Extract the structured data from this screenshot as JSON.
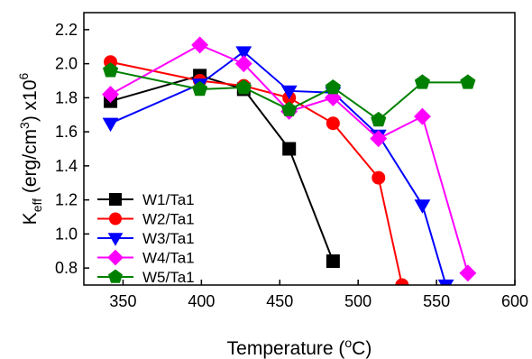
{
  "chart_data": {
    "type": "line",
    "title": "",
    "xlabel": "Temperature (°C)",
    "xlabel_parts": {
      "main": "Temperature (",
      "sup": "o",
      "end": "C)"
    },
    "ylabel": "K_eff (erg/cm^3) x10^6",
    "ylabel_parts": {
      "k": "K",
      "sub": "eff",
      "mid": " (erg/cm",
      "sup3": "3",
      "mid2": ") x10",
      "sup6": "6"
    },
    "xlim": [
      325,
      600
    ],
    "ylim": [
      0.7,
      2.3
    ],
    "xticks": [
      350,
      400,
      450,
      500,
      550,
      600
    ],
    "yticks": [
      0.8,
      1.0,
      1.2,
      1.4,
      1.6,
      1.8,
      2.0,
      2.2
    ],
    "ytick_labels": [
      "0.8",
      "1.0",
      "1.2",
      "1.4",
      "1.6",
      "1.8",
      "2.0",
      "2.2"
    ],
    "grid": false,
    "legend_position": "bottom-left",
    "series": [
      {
        "name": "W1/Ta1",
        "color": "#000000",
        "marker": "square",
        "x": [
          342,
          399,
          427,
          456,
          484
        ],
        "y": [
          1.78,
          1.93,
          1.85,
          1.5,
          0.84
        ]
      },
      {
        "name": "W2/Ta1",
        "color": "#ff0000",
        "marker": "circle",
        "x": [
          342,
          399,
          427,
          456,
          484,
          513,
          528
        ],
        "y": [
          2.01,
          1.9,
          1.87,
          1.8,
          1.65,
          1.33,
          0.7
        ]
      },
      {
        "name": "W3/Ta1",
        "color": "#0000ff",
        "marker": "triangle-down",
        "x": [
          342,
          399,
          427,
          456,
          484,
          513,
          541,
          556
        ],
        "y": [
          1.65,
          1.88,
          2.07,
          1.84,
          1.83,
          1.58,
          1.17,
          0.7
        ]
      },
      {
        "name": "W4/Ta1",
        "color": "#ff00ff",
        "marker": "diamond",
        "x": [
          342,
          399,
          427,
          456,
          484,
          513,
          541,
          570
        ],
        "y": [
          1.82,
          2.11,
          2.0,
          1.72,
          1.8,
          1.56,
          1.69,
          0.77
        ]
      },
      {
        "name": "W5/Ta1",
        "color": "#008000",
        "marker": "pentagon",
        "x": [
          342,
          399,
          427,
          456,
          484,
          513,
          541,
          570
        ],
        "y": [
          1.96,
          1.85,
          1.86,
          1.73,
          1.86,
          1.67,
          1.89,
          1.89
        ]
      }
    ]
  }
}
